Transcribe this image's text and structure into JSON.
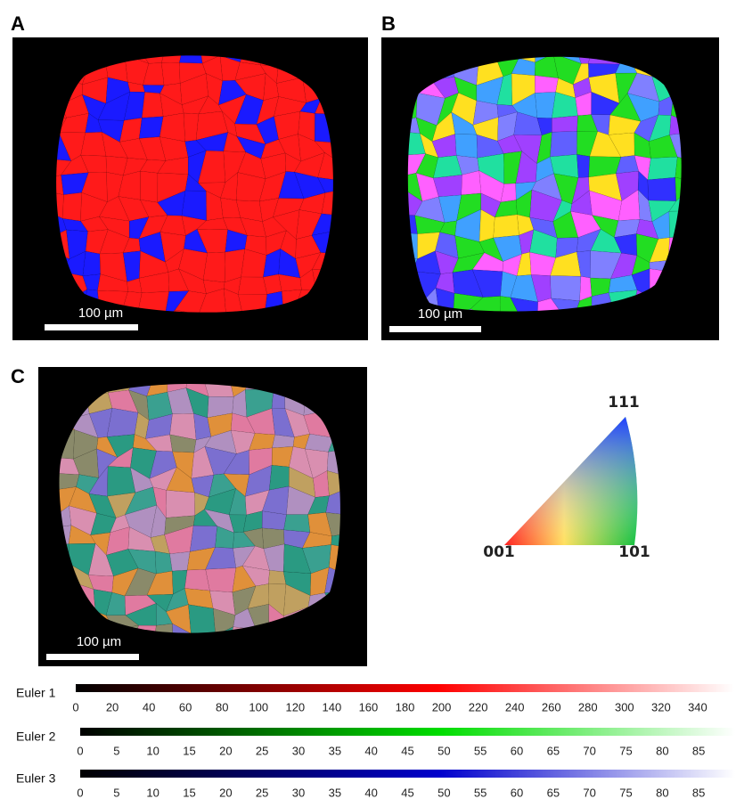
{
  "panels": [
    {
      "label": "A",
      "scale_bar": "100 µm"
    },
    {
      "label": "B",
      "scale_bar": "100 µm"
    },
    {
      "label": "C",
      "scale_bar": "100 µm"
    }
  ],
  "ipf_legend": {
    "corners": [
      "001",
      "111",
      "101"
    ]
  },
  "euler_bars": [
    {
      "label": "Euler 1",
      "color": "#ff0000",
      "range": [
        0,
        360
      ],
      "ticks": [
        0,
        20,
        40,
        60,
        80,
        100,
        120,
        140,
        160,
        180,
        200,
        220,
        240,
        260,
        280,
        300,
        320,
        340
      ]
    },
    {
      "label": "Euler 2",
      "color": "#00dd00",
      "range": [
        0,
        90
      ],
      "ticks": [
        0,
        5,
        10,
        15,
        20,
        25,
        30,
        35,
        40,
        45,
        50,
        55,
        60,
        65,
        70,
        75,
        80,
        85
      ]
    },
    {
      "label": "Euler 3",
      "color": "#0000cc",
      "range": [
        0,
        90
      ],
      "ticks": [
        0,
        5,
        10,
        15,
        20,
        25,
        30,
        35,
        40,
        45,
        50,
        55,
        60,
        65,
        70,
        75,
        80,
        85
      ]
    }
  ]
}
